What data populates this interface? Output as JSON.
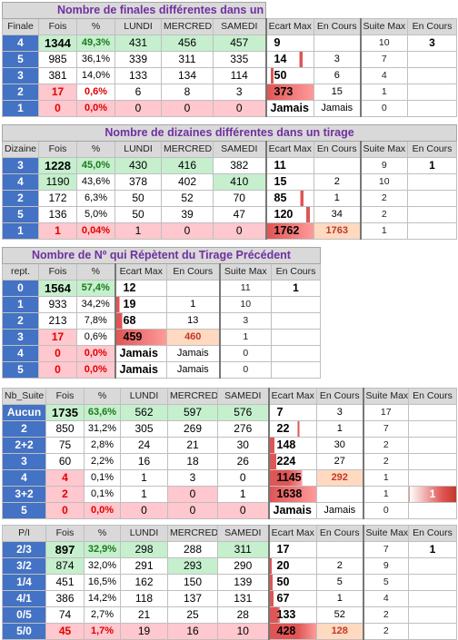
{
  "colors": {
    "key_blue": "#4472c4",
    "green_fill": "#c6efce",
    "red_fill": "#ffc7ce",
    "title_purple": "#7030a0",
    "bar_red": "#e05555"
  },
  "t1": {
    "title": "Nombre de finales différentes dans un tirage",
    "headers": [
      "Finale",
      "Fois",
      "%",
      "LUNDI",
      "MERCREDI",
      "SAMEDI",
      "Ecart Max",
      "En Cours",
      "Suite Max",
      "En Cours"
    ],
    "rows": [
      {
        "k": "4",
        "fois": "1344",
        "pct": "49,3%",
        "lun": "431",
        "mer": "456",
        "sam": "457",
        "emax": "9",
        "ec": "",
        "smax": "10",
        "sec": "3"
      },
      {
        "k": "5",
        "fois": "985",
        "pct": "36,1%",
        "lun": "339",
        "mer": "311",
        "sam": "335",
        "emax": "14",
        "ec": "3",
        "smax": "7",
        "sec": ""
      },
      {
        "k": "3",
        "fois": "381",
        "pct": "14,0%",
        "lun": "133",
        "mer": "134",
        "sam": "114",
        "emax": "50",
        "ec": "6",
        "smax": "4",
        "sec": ""
      },
      {
        "k": "2",
        "fois": "17",
        "pct": "0,6%",
        "lun": "6",
        "mer": "8",
        "sam": "3",
        "emax": "373",
        "ec": "15",
        "smax": "1",
        "sec": ""
      },
      {
        "k": "1",
        "fois": "0",
        "pct": "0,0%",
        "lun": "0",
        "mer": "0",
        "sam": "0",
        "emax": "Jamais",
        "ec": "Jamais",
        "smax": "0",
        "sec": ""
      }
    ]
  },
  "t2": {
    "title": "Nombre de dizaines différentes dans un tirage",
    "headers": [
      "Dizaine",
      "Fois",
      "%",
      "LUNDI",
      "MERCREDI",
      "SAMEDI",
      "Ecart Max",
      "En Cours",
      "Suite Max",
      "En Cours"
    ],
    "rows": [
      {
        "k": "3",
        "fois": "1228",
        "pct": "45,0%",
        "lun": "430",
        "mer": "416",
        "sam": "382",
        "emax": "11",
        "ec": "",
        "smax": "9",
        "sec": "1"
      },
      {
        "k": "4",
        "fois": "1190",
        "pct": "43,6%",
        "lun": "378",
        "mer": "402",
        "sam": "410",
        "emax": "15",
        "ec": "2",
        "smax": "10",
        "sec": ""
      },
      {
        "k": "2",
        "fois": "172",
        "pct": "6,3%",
        "lun": "50",
        "mer": "52",
        "sam": "70",
        "emax": "85",
        "ec": "1",
        "smax": "2",
        "sec": ""
      },
      {
        "k": "5",
        "fois": "136",
        "pct": "5,0%",
        "lun": "50",
        "mer": "39",
        "sam": "47",
        "emax": "120",
        "ec": "34",
        "smax": "2",
        "sec": ""
      },
      {
        "k": "1",
        "fois": "1",
        "pct": "0,04%",
        "lun": "1",
        "mer": "0",
        "sam": "0",
        "emax": "1762",
        "ec": "1763",
        "smax": "1",
        "sec": ""
      }
    ]
  },
  "t3": {
    "title": "Nombre de Nº qui Répètent du Tirage Précédent",
    "headers": [
      "rept.",
      "Fois",
      "%",
      "Ecart Max",
      "En Cours",
      "Suite Max",
      "En Cours"
    ],
    "rows": [
      {
        "k": "0",
        "fois": "1564",
        "pct": "57,4%",
        "emax": "12",
        "ec": "",
        "smax": "11",
        "sec": "1"
      },
      {
        "k": "1",
        "fois": "933",
        "pct": "34,2%",
        "emax": "19",
        "ec": "1",
        "smax": "10",
        "sec": ""
      },
      {
        "k": "2",
        "fois": "213",
        "pct": "7,8%",
        "emax": "68",
        "ec": "13",
        "smax": "3",
        "sec": ""
      },
      {
        "k": "3",
        "fois": "17",
        "pct": "0,6%",
        "emax": "459",
        "ec": "460",
        "smax": "1",
        "sec": ""
      },
      {
        "k": "4",
        "fois": "0",
        "pct": "0,0%",
        "emax": "Jamais",
        "ec": "Jamais",
        "smax": "0",
        "sec": ""
      },
      {
        "k": "5",
        "fois": "0",
        "pct": "0,0%",
        "emax": "Jamais",
        "ec": "Jamais",
        "smax": "0",
        "sec": ""
      }
    ]
  },
  "t4": {
    "headers": [
      "Nb_Suite",
      "Fois",
      "%",
      "LUNDI",
      "MERCREDI",
      "SAMEDI",
      "Ecart Max",
      "En Cours",
      "Suite Max",
      "En Cours"
    ],
    "rows": [
      {
        "k": "Aucun",
        "fois": "1735",
        "pct": "63,6%",
        "lun": "562",
        "mer": "597",
        "sam": "576",
        "emax": "7",
        "ec": "3",
        "smax": "17",
        "sec": ""
      },
      {
        "k": "2",
        "fois": "850",
        "pct": "31,2%",
        "lun": "305",
        "mer": "269",
        "sam": "276",
        "emax": "22",
        "ec": "1",
        "smax": "7",
        "sec": ""
      },
      {
        "k": "2+2",
        "fois": "75",
        "pct": "2,8%",
        "lun": "24",
        "mer": "21",
        "sam": "30",
        "emax": "148",
        "ec": "30",
        "smax": "2",
        "sec": ""
      },
      {
        "k": "3",
        "fois": "60",
        "pct": "2,2%",
        "lun": "16",
        "mer": "18",
        "sam": "26",
        "emax": "224",
        "ec": "27",
        "smax": "2",
        "sec": ""
      },
      {
        "k": "4",
        "fois": "4",
        "pct": "0,1%",
        "lun": "1",
        "mer": "3",
        "sam": "0",
        "emax": "1145",
        "ec": "292",
        "smax": "1",
        "sec": ""
      },
      {
        "k": "3+2",
        "fois": "2",
        "pct": "0,1%",
        "lun": "1",
        "mer": "0",
        "sam": "1",
        "emax": "1638",
        "ec": "",
        "smax": "1",
        "sec": "1"
      },
      {
        "k": "5",
        "fois": "0",
        "pct": "0,0%",
        "lun": "0",
        "mer": "0",
        "sam": "0",
        "emax": "Jamais",
        "ec": "Jamais",
        "smax": "0",
        "sec": ""
      }
    ]
  },
  "t5": {
    "headers": [
      "P/I",
      "Fois",
      "%",
      "LUNDI",
      "MERCREDI",
      "SAMEDI",
      "Ecart Max",
      "En Cours",
      "Suite Max",
      "En Cours"
    ],
    "rows": [
      {
        "k": "2/3",
        "fois": "897",
        "pct": "32,9%",
        "lun": "298",
        "mer": "288",
        "sam": "311",
        "emax": "17",
        "ec": "",
        "smax": "7",
        "sec": "1"
      },
      {
        "k": "3/2",
        "fois": "874",
        "pct": "32,0%",
        "lun": "291",
        "mer": "293",
        "sam": "290",
        "emax": "20",
        "ec": "2",
        "smax": "9",
        "sec": ""
      },
      {
        "k": "1/4",
        "fois": "451",
        "pct": "16,5%",
        "lun": "162",
        "mer": "150",
        "sam": "139",
        "emax": "50",
        "ec": "5",
        "smax": "5",
        "sec": ""
      },
      {
        "k": "4/1",
        "fois": "386",
        "pct": "14,2%",
        "lun": "118",
        "mer": "137",
        "sam": "131",
        "emax": "67",
        "ec": "1",
        "smax": "4",
        "sec": ""
      },
      {
        "k": "0/5",
        "fois": "74",
        "pct": "2,7%",
        "lun": "21",
        "mer": "25",
        "sam": "28",
        "emax": "133",
        "ec": "52",
        "smax": "2",
        "sec": ""
      },
      {
        "k": "5/0",
        "fois": "45",
        "pct": "1,7%",
        "lun": "19",
        "mer": "16",
        "sam": "10",
        "emax": "428",
        "ec": "128",
        "smax": "2",
        "sec": ""
      }
    ]
  }
}
